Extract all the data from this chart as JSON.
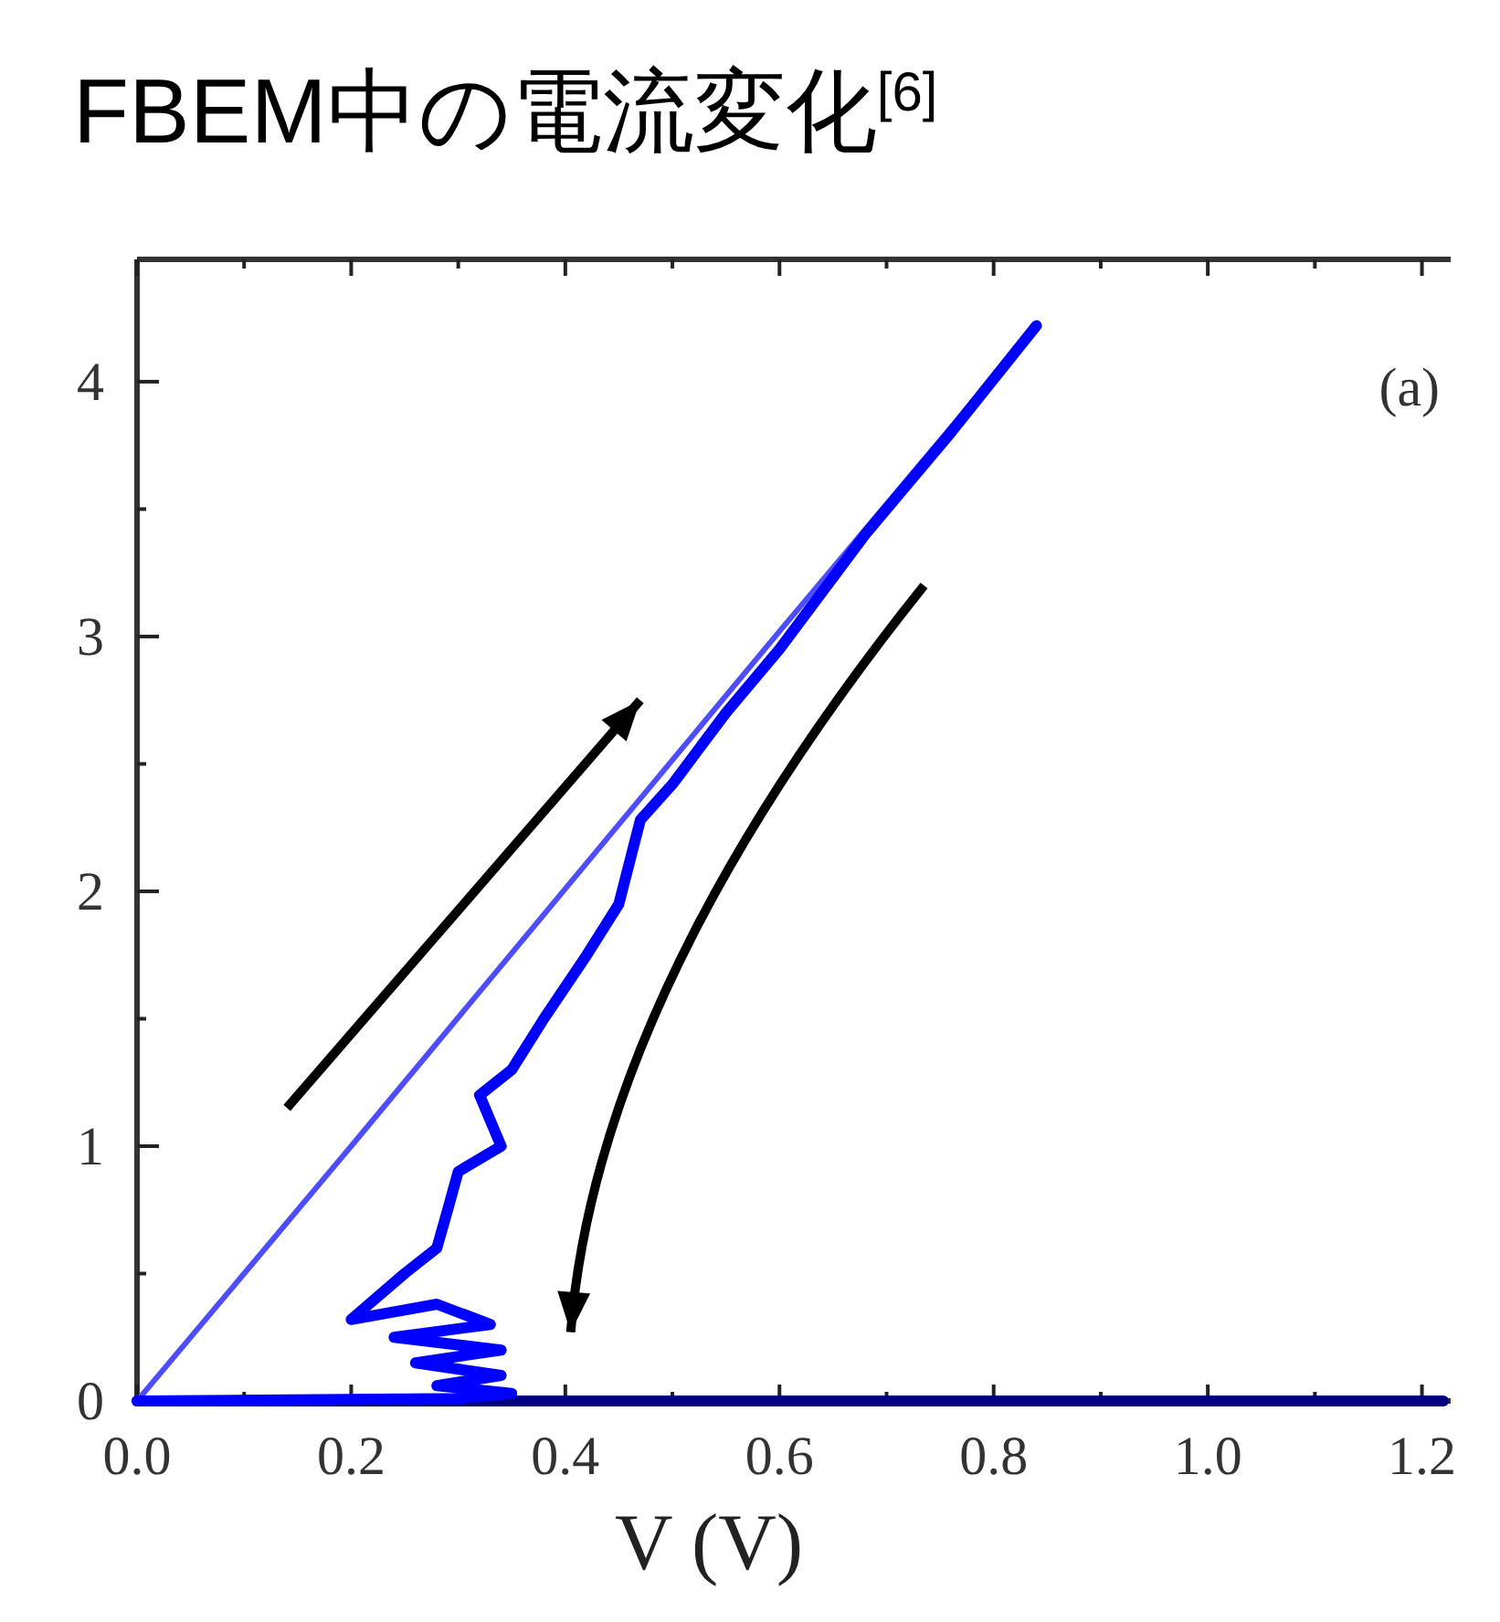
{
  "chart_data": {
    "type": "line",
    "title": "FBEM中の電流変化$^{[6]}$",
    "xlabel": "V (V)",
    "annotations": [
      "(a)"
    ],
    "xlim": [
      0,
      1.22
    ],
    "ylim": [
      0,
      4.48
    ],
    "xticks": [
      {
        "value": 0,
        "label": "0.0"
      },
      {
        "value": 0.1,
        "label": null
      },
      {
        "value": 0.2,
        "label": "0.2"
      },
      {
        "value": 0.3,
        "label": null
      },
      {
        "value": 0.4,
        "label": "0.4"
      },
      {
        "value": 0.5,
        "label": null
      },
      {
        "value": 0.6,
        "label": "0.6"
      },
      {
        "value": 0.7,
        "label": null
      },
      {
        "value": 0.8,
        "label": "0.8"
      },
      {
        "value": 0.9,
        "label": null
      },
      {
        "value": 1.0,
        "label": "1.0"
      },
      {
        "value": 1.1,
        "label": null
      },
      {
        "value": 1.2,
        "label": "1.2"
      }
    ],
    "yticks": [
      0,
      {
        "value": 0.5,
        "label": null
      },
      1,
      {
        "value": 1.5,
        "label": null
      },
      2,
      {
        "value": 2.5,
        "label": null
      },
      3,
      {
        "value": 3.5,
        "label": null
      },
      4
    ],
    "line_style": "solid",
    "series": [
      {
        "color": "#000080",
        "x": [
          0,
          0.6,
          1.22
        ],
        "values": [
          0,
          0,
          0
        ]
      },
      {
        "color": "#4d4dff",
        "x": [
          0,
          0.2,
          0.4,
          0.6,
          0.84
        ],
        "values": [
          0,
          1.0,
          2.01,
          3.02,
          4.22
        ]
      },
      {
        "color": "#0000ff",
        "x": [
          0.84,
          0.76,
          0.68,
          0.6,
          0.55,
          0.5,
          0.47,
          0.45,
          0.42,
          0.38,
          0.35,
          0.32,
          0.34,
          0.3,
          0.29,
          0.28,
          0.25,
          0.2,
          0.28,
          0.33,
          0.24,
          0.34,
          0.26,
          0.34,
          0.28,
          0.35,
          0.3,
          0.0
        ],
        "values": [
          4.22,
          3.8,
          3.4,
          2.95,
          2.7,
          2.42,
          2.28,
          1.95,
          1.75,
          1.5,
          1.3,
          1.2,
          1.0,
          0.9,
          0.75,
          0.6,
          0.5,
          0.32,
          0.38,
          0.3,
          0.25,
          0.2,
          0.15,
          0.1,
          0.06,
          0.03,
          0.01,
          0.0
        ]
      }
    ]
  }
}
